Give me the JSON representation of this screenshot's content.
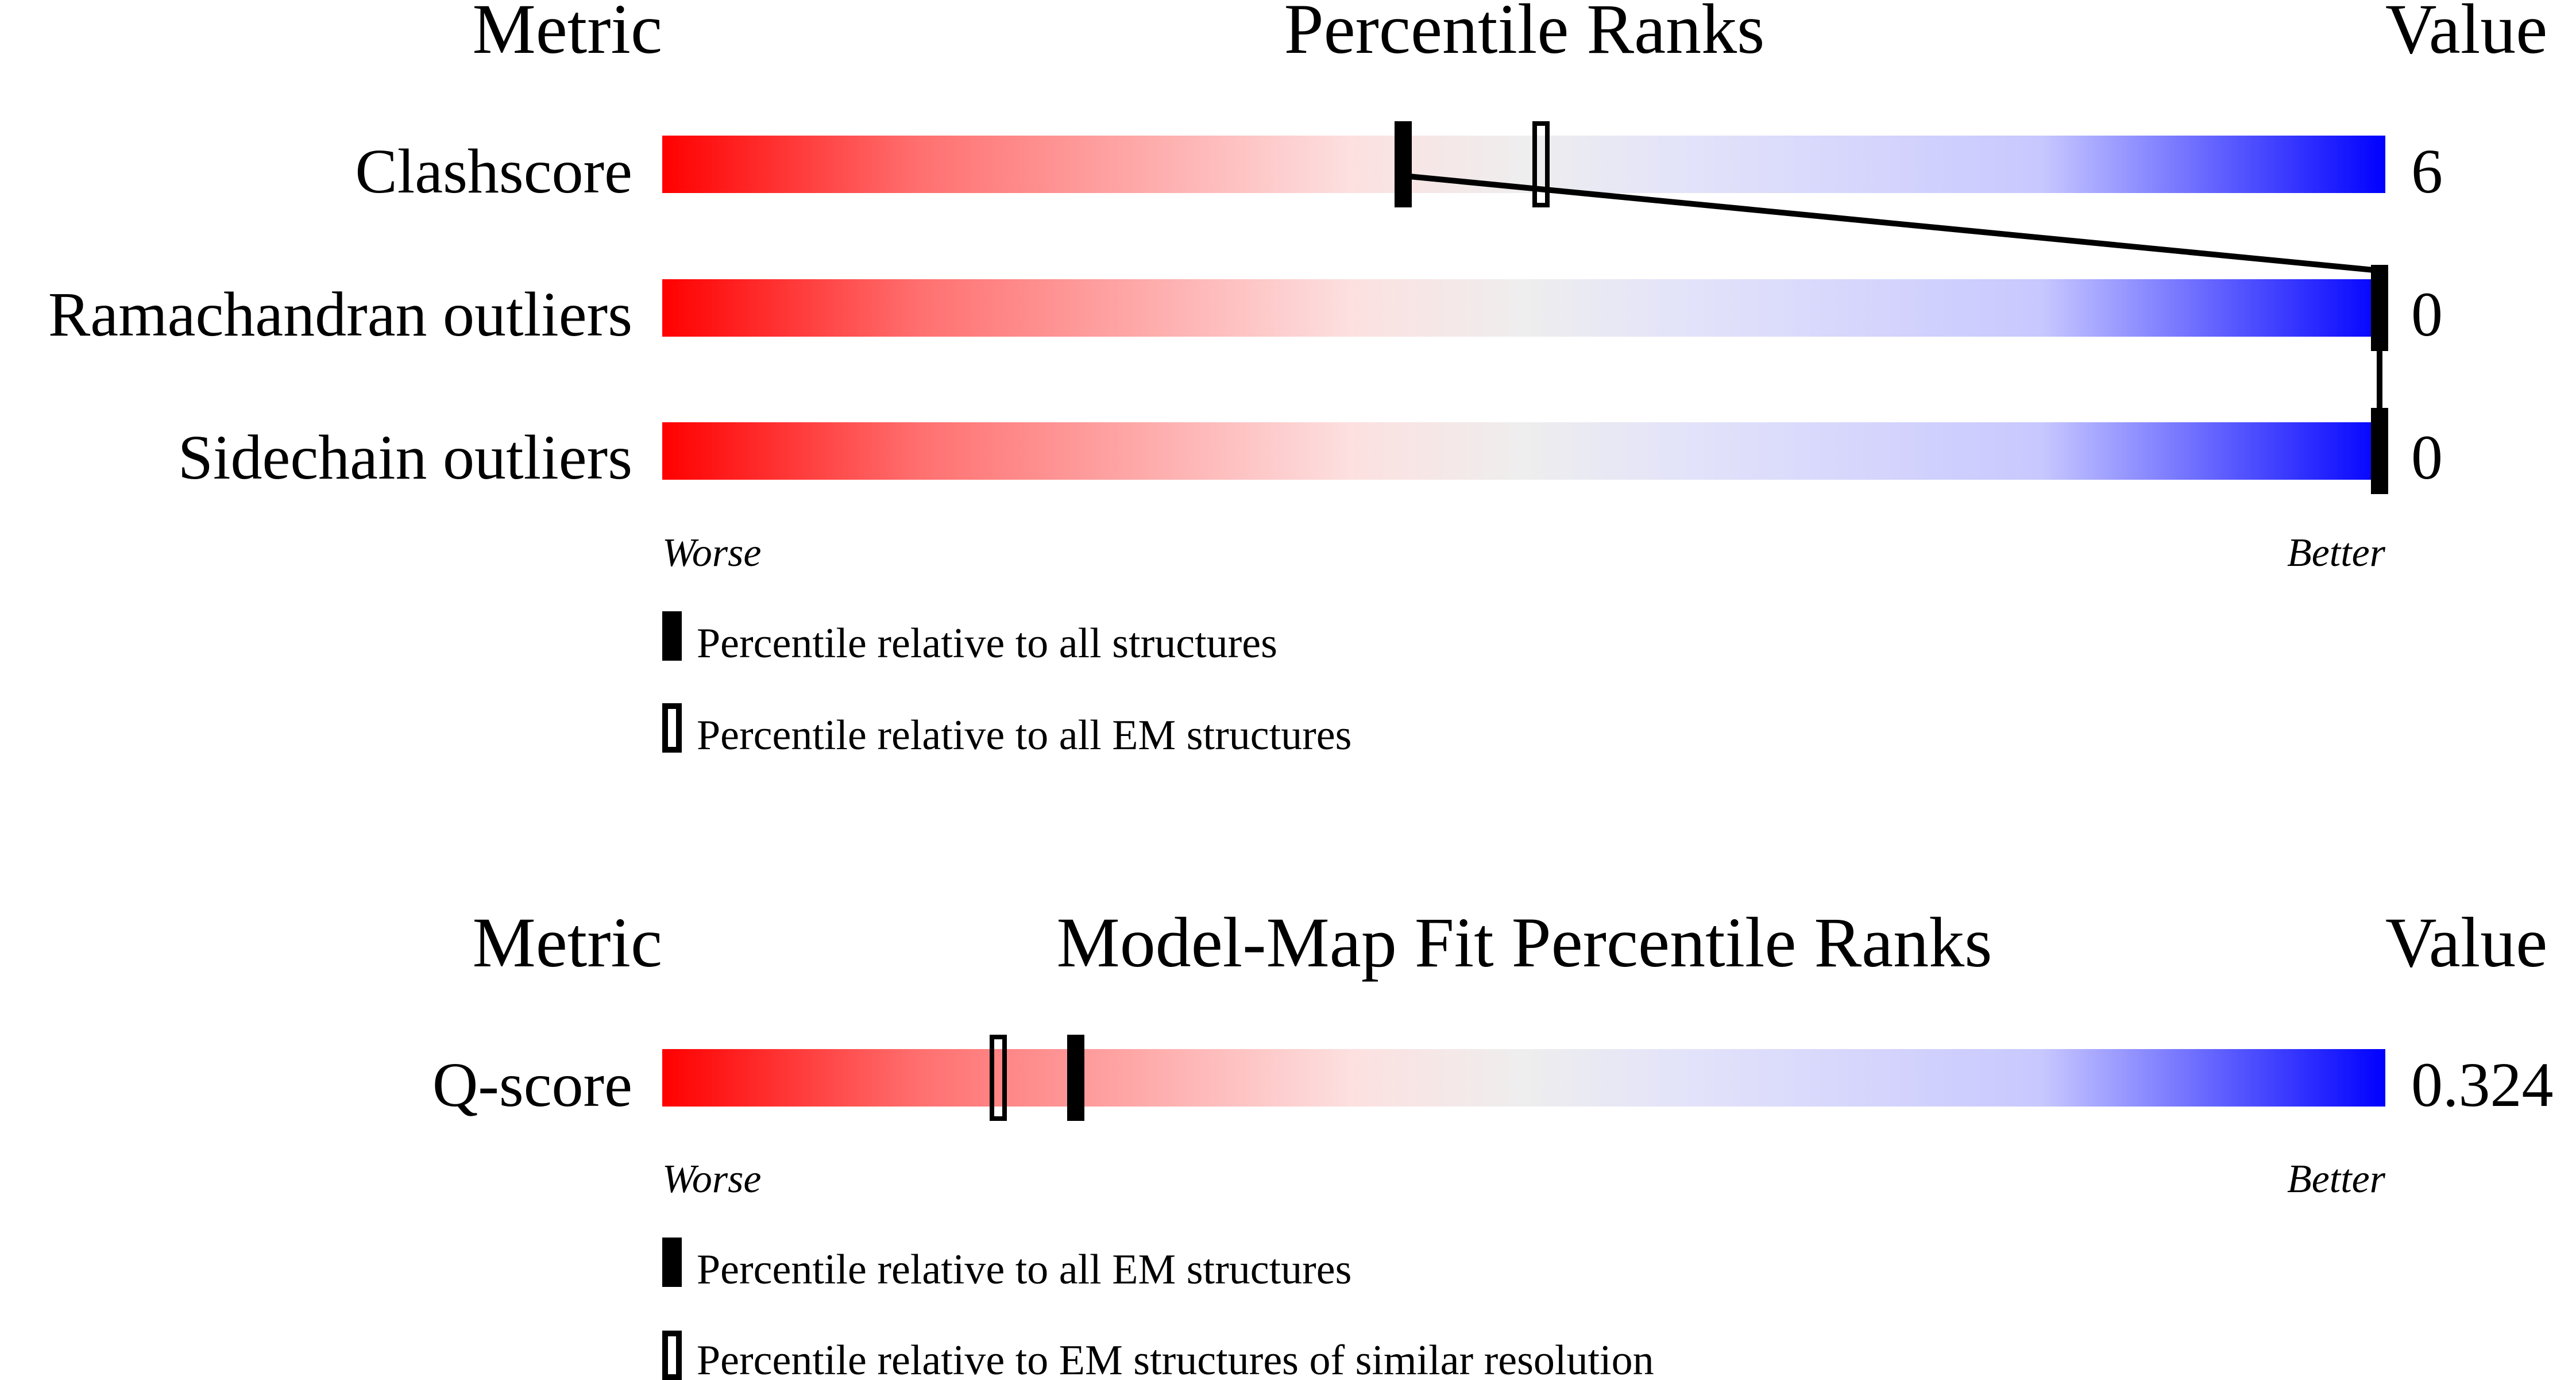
{
  "chart_data": [
    {
      "type": "percentile-slider",
      "headers": {
        "metric": "Metric",
        "title": "Percentile Ranks",
        "value": "Value"
      },
      "xlim": [
        0,
        100
      ],
      "rows": [
        {
          "metric": "Clashscore",
          "value": "6",
          "percentile_all": 43,
          "percentile_subset": 51
        },
        {
          "metric": "Ramachandran outliers",
          "value": "0",
          "percentile_all": 100,
          "percentile_subset": 100
        },
        {
          "metric": "Sidechain outliers",
          "value": "0",
          "percentile_all": 100,
          "percentile_subset": 100
        }
      ],
      "worse_label": "Worse",
      "better_label": "Better",
      "legend": [
        {
          "marker": "filled",
          "label": "Percentile relative to all structures"
        },
        {
          "marker": "open",
          "label": "Percentile relative to all EM structures"
        }
      ]
    },
    {
      "type": "percentile-slider",
      "headers": {
        "metric": "Metric",
        "title": "Model-Map Fit Percentile Ranks",
        "value": "Value"
      },
      "xlim": [
        0,
        100
      ],
      "rows": [
        {
          "metric": "Q-score",
          "value": "0.324",
          "percentile_all": 24,
          "percentile_subset": 19.5
        }
      ],
      "worse_label": "Worse",
      "better_label": "Better",
      "legend": [
        {
          "marker": "filled",
          "label": "Percentile relative to all EM structures"
        },
        {
          "marker": "open",
          "label": "Percentile relative to EM structures of similar resolution"
        }
      ]
    }
  ],
  "colors": {
    "worse": "#ff0000",
    "middle": "#eeeeee",
    "better": "#0000ff",
    "marker": "#000000"
  }
}
